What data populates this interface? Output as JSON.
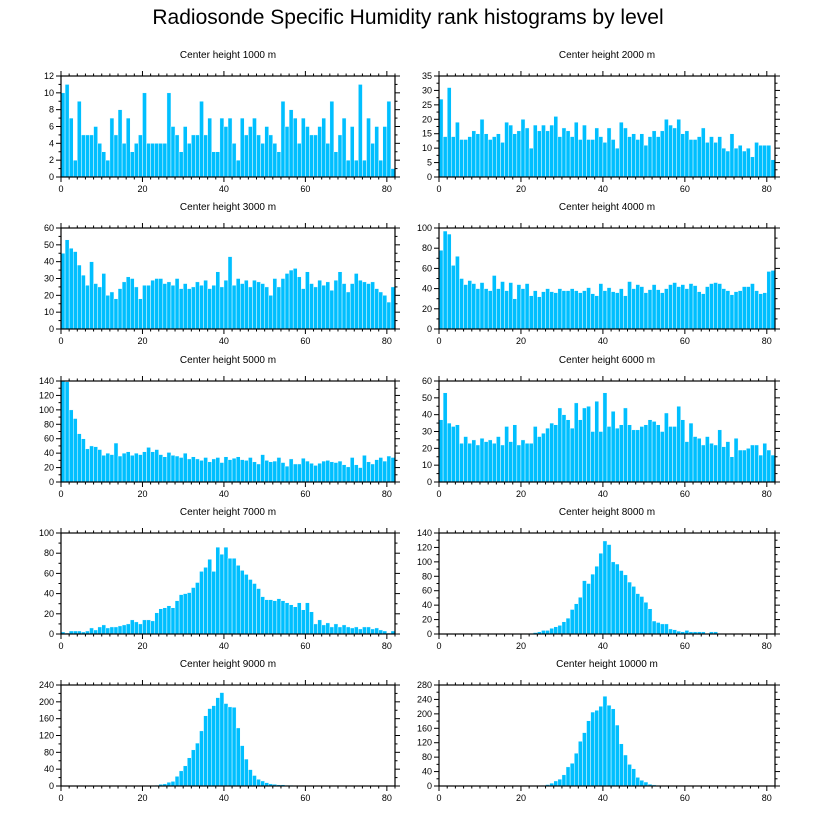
{
  "title": "Radiosonde Specific Humidity rank histograms by level",
  "colors": {
    "bar": "#00BFFF",
    "bar_edge": "#ffffff",
    "axis": "#000000"
  },
  "chart_data": [
    {
      "type": "bar",
      "title": "Center height 1000 m",
      "xlim": [
        0,
        82
      ],
      "ylim": [
        0,
        12
      ],
      "xticks": [
        0,
        20,
        40,
        60,
        80
      ],
      "yticks": [
        0,
        2,
        4,
        6,
        8,
        10,
        12
      ],
      "values": [
        10,
        11,
        7,
        2,
        9,
        5,
        5,
        5,
        6,
        4,
        3,
        2,
        7,
        5,
        8,
        4,
        7,
        3,
        4,
        5,
        10,
        4,
        4,
        4,
        4,
        4,
        10,
        6,
        5,
        3,
        6,
        4,
        5,
        5,
        9,
        5,
        7,
        3,
        3,
        7,
        6,
        7,
        4,
        2,
        7,
        5,
        6,
        7,
        5,
        4,
        6,
        5,
        4,
        3,
        9,
        6,
        8,
        7,
        4,
        7,
        6,
        5,
        5,
        6,
        7,
        4,
        9,
        3,
        5,
        7,
        2,
        6,
        2,
        11,
        2,
        7,
        4,
        6,
        2,
        6,
        9,
        1
      ]
    },
    {
      "type": "bar",
      "title": "Center height 2000 m",
      "xlim": [
        0,
        82
      ],
      "ylim": [
        0,
        35
      ],
      "xticks": [
        0,
        20,
        40,
        60,
        80
      ],
      "yticks": [
        0,
        5,
        10,
        15,
        20,
        25,
        30,
        35
      ],
      "values": [
        27,
        14,
        31,
        14,
        19,
        13,
        13,
        14,
        16,
        15,
        20,
        15,
        13,
        14,
        15,
        12,
        19,
        18,
        15,
        16,
        20,
        17,
        10,
        18,
        16,
        18,
        16,
        18,
        21,
        14,
        17,
        16,
        14,
        19,
        13,
        18,
        13,
        13,
        17,
        14,
        12,
        17,
        13,
        10,
        19,
        17,
        14,
        15,
        13,
        15,
        11,
        14,
        16,
        14,
        16,
        20,
        18,
        17,
        20,
        15,
        16,
        13,
        13,
        14,
        17,
        12,
        14,
        12,
        14,
        10,
        9,
        15,
        10,
        11,
        9,
        10,
        7,
        12,
        11,
        11,
        11,
        6
      ]
    },
    {
      "type": "bar",
      "title": "Center height 3000 m",
      "xlim": [
        0,
        82
      ],
      "ylim": [
        0,
        60
      ],
      "xticks": [
        0,
        20,
        40,
        60,
        80
      ],
      "yticks": [
        0,
        10,
        20,
        30,
        40,
        50,
        60
      ],
      "values": [
        45,
        53,
        48,
        46,
        38,
        32,
        26,
        40,
        27,
        25,
        33,
        20,
        22,
        18,
        24,
        28,
        31,
        30,
        25,
        18,
        26,
        26,
        29,
        30,
        30,
        27,
        28,
        26,
        30,
        24,
        27,
        24,
        25,
        28,
        26,
        29,
        24,
        26,
        34,
        25,
        29,
        43,
        26,
        30,
        27,
        29,
        25,
        29,
        28,
        27,
        25,
        20,
        30,
        25,
        30,
        33,
        35,
        36,
        31,
        24,
        34,
        27,
        25,
        29,
        26,
        28,
        23,
        29,
        34,
        27,
        22,
        27,
        33,
        29,
        28,
        27,
        28,
        24,
        22,
        20,
        16,
        25
      ]
    },
    {
      "type": "bar",
      "title": "Center height 4000 m",
      "xlim": [
        0,
        82
      ],
      "ylim": [
        0,
        100
      ],
      "xticks": [
        0,
        20,
        40,
        60,
        80
      ],
      "yticks": [
        0,
        20,
        40,
        60,
        80,
        100
      ],
      "values": [
        78,
        97,
        94,
        63,
        72,
        50,
        44,
        48,
        45,
        40,
        46,
        40,
        38,
        53,
        40,
        47,
        38,
        46,
        30,
        44,
        40,
        45,
        33,
        38,
        32,
        37,
        40,
        37,
        36,
        40,
        38,
        38,
        40,
        38,
        36,
        38,
        41,
        35,
        33,
        45,
        38,
        41,
        37,
        36,
        40,
        33,
        47,
        40,
        44,
        42,
        36,
        39,
        44,
        39,
        36,
        40,
        44,
        46,
        42,
        44,
        40,
        45,
        43,
        37,
        35,
        42,
        45,
        46,
        45,
        40,
        38,
        34,
        37,
        38,
        42,
        42,
        45,
        38,
        35,
        36,
        57,
        58
      ]
    },
    {
      "type": "bar",
      "title": "Center height 5000 m",
      "xlim": [
        0,
        82
      ],
      "ylim": [
        0,
        140
      ],
      "xticks": [
        0,
        20,
        40,
        60,
        80
      ],
      "yticks": [
        0,
        20,
        40,
        60,
        80,
        100,
        120,
        140
      ],
      "values": [
        140,
        139,
        100,
        88,
        67,
        60,
        46,
        50,
        49,
        45,
        37,
        40,
        38,
        54,
        36,
        40,
        42,
        37,
        40,
        38,
        42,
        48,
        42,
        45,
        38,
        35,
        41,
        37,
        36,
        34,
        40,
        32,
        35,
        32,
        30,
        34,
        28,
        32,
        34,
        27,
        35,
        31,
        33,
        35,
        31,
        30,
        34,
        28,
        25,
        38,
        30,
        28,
        29,
        34,
        27,
        22,
        32,
        25,
        25,
        33,
        29,
        26,
        23,
        26,
        29,
        30,
        28,
        27,
        29,
        24,
        21,
        34,
        24,
        20,
        37,
        28,
        25,
        31,
        34,
        29,
        36,
        34
      ]
    },
    {
      "type": "bar",
      "title": "Center height 6000 m",
      "xlim": [
        0,
        82
      ],
      "ylim": [
        0,
        60
      ],
      "xticks": [
        0,
        20,
        40,
        60,
        80
      ],
      "yticks": [
        0,
        10,
        20,
        30,
        40,
        50,
        60
      ],
      "values": [
        37,
        53,
        35,
        33,
        34,
        23,
        27,
        23,
        25,
        22,
        26,
        24,
        25,
        23,
        27,
        22,
        33,
        24,
        34,
        22,
        25,
        23,
        23,
        33,
        27,
        29,
        32,
        35,
        34,
        44,
        40,
        37,
        32,
        47,
        37,
        44,
        45,
        30,
        48,
        30,
        53,
        33,
        42,
        32,
        34,
        44,
        34,
        31,
        31,
        33,
        34,
        37,
        36,
        34,
        30,
        41,
        33,
        33,
        45,
        37,
        24,
        35,
        27,
        26,
        22,
        27,
        23,
        22,
        31,
        21,
        24,
        15,
        26,
        19,
        19,
        20,
        22,
        22,
        16,
        23,
        19,
        16
      ]
    },
    {
      "type": "bar",
      "title": "Center height 7000 m",
      "xlim": [
        0,
        82
      ],
      "ylim": [
        0,
        100
      ],
      "xticks": [
        0,
        20,
        40,
        60,
        80
      ],
      "yticks": [
        0,
        20,
        40,
        60,
        80,
        100
      ],
      "values": [
        2,
        1,
        3,
        3,
        3,
        2,
        3,
        6,
        4,
        7,
        9,
        6,
        7,
        7,
        8,
        9,
        10,
        14,
        12,
        10,
        14,
        14,
        13,
        21,
        25,
        26,
        28,
        26,
        33,
        39,
        40,
        41,
        46,
        51,
        62,
        66,
        74,
        62,
        86,
        79,
        86,
        75,
        75,
        68,
        63,
        59,
        54,
        50,
        45,
        37,
        34,
        34,
        33,
        35,
        33,
        31,
        29,
        27,
        31,
        24,
        31,
        22,
        10,
        14,
        9,
        11,
        7,
        10,
        7,
        9,
        7,
        6,
        7,
        5,
        7,
        7,
        5,
        6,
        4,
        3,
        1,
        3
      ]
    },
    {
      "type": "bar",
      "title": "Center height 8000 m",
      "xlim": [
        0,
        82
      ],
      "ylim": [
        0,
        140
      ],
      "xticks": [
        0,
        20,
        40,
        60,
        80
      ],
      "yticks": [
        0,
        20,
        40,
        60,
        80,
        100,
        120,
        140
      ],
      "values": [
        0,
        0,
        0,
        0,
        0,
        0,
        0,
        0,
        0,
        0,
        0,
        0,
        0,
        0,
        0,
        0,
        0,
        0,
        0,
        0,
        0,
        0,
        1,
        2,
        3,
        5,
        5,
        8,
        10,
        12,
        17,
        22,
        34,
        42,
        51,
        74,
        70,
        83,
        94,
        112,
        129,
        124,
        100,
        97,
        88,
        82,
        72,
        66,
        56,
        52,
        44,
        35,
        18,
        16,
        14,
        14,
        7,
        6,
        4,
        3,
        5,
        3,
        3,
        3,
        3,
        1,
        3,
        3,
        0,
        0,
        0,
        0,
        0,
        0,
        0,
        0,
        0,
        0,
        0,
        0,
        0,
        0
      ]
    },
    {
      "type": "bar",
      "title": "Center height 9000 m",
      "xlim": [
        0,
        82
      ],
      "ylim": [
        0,
        240
      ],
      "xticks": [
        0,
        20,
        40,
        60,
        80
      ],
      "yticks": [
        0,
        40,
        80,
        120,
        160,
        200,
        240
      ],
      "values": [
        0,
        0,
        0,
        0,
        0,
        0,
        0,
        0,
        0,
        0,
        0,
        0,
        0,
        0,
        0,
        0,
        0,
        0,
        0,
        0,
        0,
        1,
        1,
        2,
        4,
        5,
        9,
        11,
        23,
        36,
        48,
        67,
        86,
        102,
        131,
        167,
        184,
        191,
        210,
        222,
        196,
        188,
        187,
        138,
        96,
        64,
        39,
        25,
        16,
        12,
        8,
        5,
        4,
        3,
        3,
        2,
        2,
        1,
        1,
        1,
        1,
        1,
        0,
        0,
        0,
        0,
        0,
        0,
        0,
        0,
        0,
        0,
        0,
        0,
        0,
        0,
        0,
        0,
        0,
        0,
        0,
        0
      ]
    },
    {
      "type": "bar",
      "title": "Center height 10000 m",
      "xlim": [
        0,
        82
      ],
      "ylim": [
        0,
        280
      ],
      "xticks": [
        0,
        20,
        40,
        60,
        80
      ],
      "yticks": [
        0,
        40,
        80,
        120,
        160,
        200,
        240,
        280
      ],
      "values": [
        0,
        0,
        0,
        0,
        0,
        0,
        0,
        0,
        0,
        0,
        0,
        0,
        0,
        0,
        0,
        0,
        0,
        0,
        0,
        0,
        0,
        0,
        0,
        0,
        1,
        2,
        4,
        8,
        14,
        19,
        31,
        53,
        63,
        91,
        124,
        148,
        181,
        205,
        210,
        221,
        249,
        224,
        214,
        169,
        117,
        86,
        60,
        48,
        24,
        16,
        11,
        5,
        3,
        2,
        1,
        1,
        0,
        1,
        0,
        0,
        0,
        0,
        0,
        0,
        0,
        0,
        0,
        0,
        0,
        0,
        0,
        0,
        0,
        0,
        0,
        0,
        0,
        0,
        0,
        0,
        0,
        0
      ]
    }
  ]
}
